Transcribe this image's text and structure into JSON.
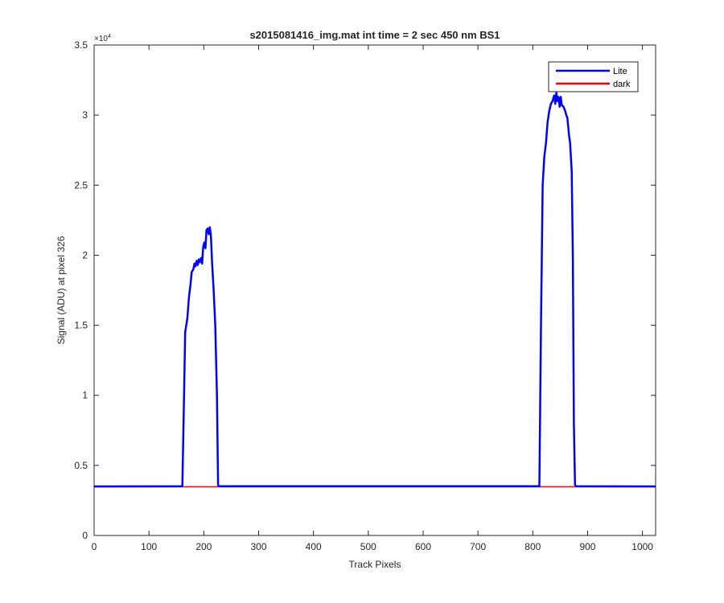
{
  "chart_data": {
    "type": "line",
    "title": "s2015081416_img.mat int time = 2 sec  450 nm BS1",
    "xlabel": "Track Pixels",
    "ylabel": "Signal (ADU) at pixel 326",
    "xlim": [
      0,
      1024
    ],
    "ylim": [
      0,
      35000
    ],
    "x_ticks": [
      0,
      100,
      200,
      300,
      400,
      500,
      600,
      700,
      800,
      900,
      1000
    ],
    "y_ticks": [
      0,
      5000,
      10000,
      15000,
      20000,
      25000,
      30000,
      35000
    ],
    "y_tick_labels": [
      "0",
      "0.5",
      "1",
      "1.5",
      "2",
      "2.5",
      "3",
      "3.5"
    ],
    "y_exponent": "×10",
    "y_exponent_power": "4",
    "grid": false,
    "legend_position": "top-right",
    "series": [
      {
        "name": "Lite",
        "color": "#0000ff",
        "points": [
          [
            0,
            3500
          ],
          [
            161,
            3520
          ],
          [
            164,
            10000
          ],
          [
            166,
            14500
          ],
          [
            170,
            15500
          ],
          [
            173,
            17000
          ],
          [
            176,
            18000
          ],
          [
            178,
            18800
          ],
          [
            181,
            19000
          ],
          [
            183,
            19400
          ],
          [
            185,
            19200
          ],
          [
            187,
            19600
          ],
          [
            189,
            19300
          ],
          [
            191,
            19700
          ],
          [
            193,
            19500
          ],
          [
            195,
            19800
          ],
          [
            197,
            19400
          ],
          [
            199,
            20600
          ],
          [
            201,
            20900
          ],
          [
            203,
            20500
          ],
          [
            205,
            21800
          ],
          [
            207,
            21900
          ],
          [
            209,
            21500
          ],
          [
            211,
            22000
          ],
          [
            213,
            21400
          ],
          [
            215,
            19500
          ],
          [
            218,
            17500
          ],
          [
            221,
            15000
          ],
          [
            224,
            10000
          ],
          [
            226,
            3600
          ],
          [
            227,
            3520
          ],
          [
            812,
            3520
          ],
          [
            815,
            15000
          ],
          [
            818,
            25000
          ],
          [
            821,
            27000
          ],
          [
            824,
            28000
          ],
          [
            827,
            29500
          ],
          [
            830,
            30300
          ],
          [
            833,
            30800
          ],
          [
            836,
            31000
          ],
          [
            839,
            31400
          ],
          [
            841,
            30800
          ],
          [
            843,
            31600
          ],
          [
            845,
            31000
          ],
          [
            847,
            31300
          ],
          [
            849,
            30600
          ],
          [
            851,
            31300
          ],
          [
            853,
            30700
          ],
          [
            856,
            30600
          ],
          [
            859,
            30300
          ],
          [
            861,
            30000
          ],
          [
            863,
            29800
          ],
          [
            866,
            28600
          ],
          [
            868,
            28000
          ],
          [
            871,
            26000
          ],
          [
            873,
            20000
          ],
          [
            875,
            8000
          ],
          [
            877,
            3600
          ],
          [
            879,
            3520
          ],
          [
            1024,
            3500
          ]
        ]
      },
      {
        "name": "dark",
        "color": "#ff0000",
        "points": [
          [
            0,
            3470
          ],
          [
            1024,
            3470
          ]
        ]
      }
    ]
  }
}
